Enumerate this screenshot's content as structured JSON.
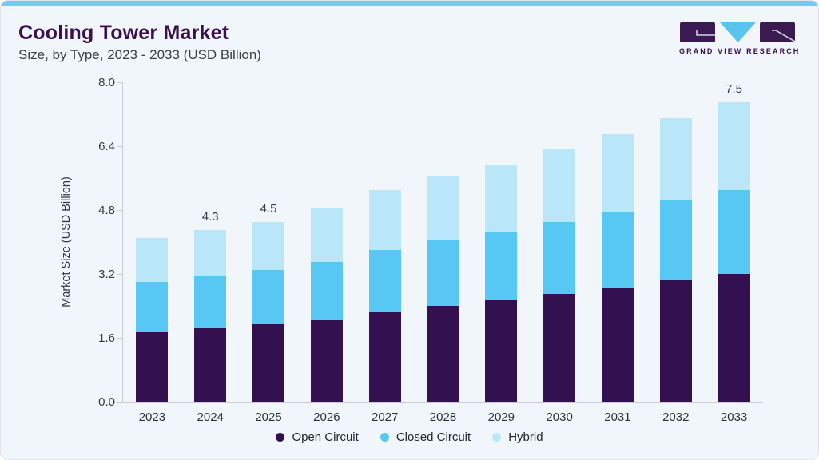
{
  "header": {
    "title": "Cooling Tower Market",
    "subtitle": "Size, by Type, 2023 - 2033 (USD Billion)",
    "brand": "GRAND VIEW RESEARCH"
  },
  "colors": {
    "accent_bar": "#6fccf2",
    "card_background": "#f1f6fa",
    "title_purple": "#3a1053",
    "axis_line": "#c9cdd3",
    "open_circuit": "#331150",
    "closed_circuit": "#57c8f4",
    "hybrid": "#b9e7f9",
    "logo_dark": "#3a1a52",
    "logo_blue": "#5ac4ee"
  },
  "chart_data": {
    "type": "bar",
    "stacked": true,
    "title": "Cooling Tower Market",
    "subtitle": "Size, by Type, 2023 - 2033 (USD Billion)",
    "xlabel": "",
    "ylabel": "Market Size (USD Billion)",
    "categories": [
      "2023",
      "2024",
      "2025",
      "2026",
      "2027",
      "2028",
      "2029",
      "2030",
      "2031",
      "2032",
      "2033"
    ],
    "series": [
      {
        "name": "Open Circuit",
        "color": "#331150",
        "values": [
          1.75,
          1.85,
          1.95,
          2.05,
          2.25,
          2.4,
          2.55,
          2.7,
          2.85,
          3.05,
          3.2
        ]
      },
      {
        "name": "Closed Circuit",
        "color": "#57c8f4",
        "values": [
          1.25,
          1.3,
          1.35,
          1.45,
          1.55,
          1.65,
          1.7,
          1.8,
          1.9,
          2.0,
          2.1
        ]
      },
      {
        "name": "Hybrid",
        "color": "#b9e7f9",
        "values": [
          1.1,
          1.15,
          1.2,
          1.35,
          1.5,
          1.6,
          1.7,
          1.85,
          1.95,
          2.05,
          2.2
        ]
      }
    ],
    "totals": [
      4.1,
      4.3,
      4.5,
      4.85,
      5.3,
      5.65,
      5.95,
      6.35,
      6.7,
      7.1,
      7.5
    ],
    "data_labels": {
      "2024": "4.3",
      "2025": "4.5",
      "2033": "7.5"
    },
    "yticks": [
      "8.0",
      "6.4",
      "4.8",
      "3.2",
      "1.6",
      "0.0"
    ],
    "ylim": [
      0,
      8.0
    ],
    "grid": false,
    "legend_position": "bottom"
  }
}
